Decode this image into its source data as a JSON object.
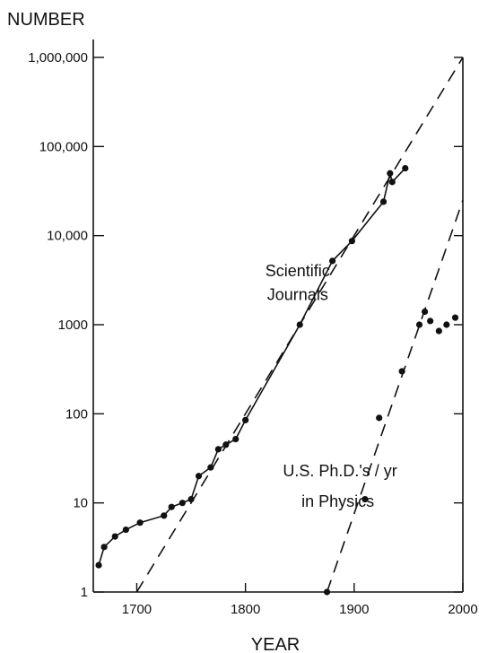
{
  "chart_data": {
    "type": "line",
    "ylabel": "NUMBER",
    "xlabel": "YEAR",
    "y_scale": "log",
    "xlim": [
      1660,
      2000
    ],
    "ylim": [
      1,
      1000000
    ],
    "x_ticks": [
      1700,
      1800,
      1900,
      2000
    ],
    "x_tick_labels": [
      "1700",
      "1800",
      "1900",
      "2000"
    ],
    "y_ticks": [
      1,
      10,
      100,
      1000,
      10000,
      100000,
      1000000
    ],
    "y_tick_labels": [
      "1",
      "10",
      "100",
      "1000",
      "10,000",
      "100,000",
      "1,000,000"
    ],
    "grid": false,
    "legend": "none",
    "annotations": [
      {
        "text": "Scientific",
        "x": 1848,
        "y": 3500
      },
      {
        "text": "Journals",
        "x": 1848,
        "y": 1900
      },
      {
        "text": "U.S. Ph.D.'s / yr",
        "x": 1887,
        "y": 20
      },
      {
        "text": "in Physics",
        "x": 1885,
        "y": 9
      }
    ],
    "series": [
      {
        "name": "Scientific Journals",
        "style": "solid",
        "x": [
          1665,
          1670,
          1680,
          1690,
          1703,
          1725,
          1732,
          1742,
          1750,
          1757,
          1768,
          1775,
          1782,
          1791,
          1800,
          1850,
          1880,
          1898,
          1927,
          1933,
          1935,
          1947
        ],
        "y": [
          2,
          3.2,
          4.2,
          5,
          6,
          7.2,
          9,
          10,
          11,
          20,
          25,
          40,
          45,
          52,
          85,
          1000,
          5200,
          8700,
          24000,
          50000,
          40000,
          57000
        ]
      },
      {
        "name": "Scientific Journals trend",
        "style": "dashed",
        "x": [
          1700,
          2000
        ],
        "y": [
          1,
          1000000
        ]
      },
      {
        "name": "U.S. Ph.D.'s / yr in Physics",
        "style": "points",
        "x": [
          1875,
          1910,
          1923,
          1944,
          1960,
          1965,
          1970,
          1978,
          1985,
          1993
        ],
        "y": [
          1,
          11,
          90,
          300,
          1000,
          1400,
          1100,
          850,
          1000,
          1200
        ]
      },
      {
        "name": "U.S. Ph.D.'s / yr in Physics trend",
        "style": "dashed",
        "x": [
          1875,
          2000
        ],
        "y": [
          1,
          25000
        ]
      }
    ]
  }
}
